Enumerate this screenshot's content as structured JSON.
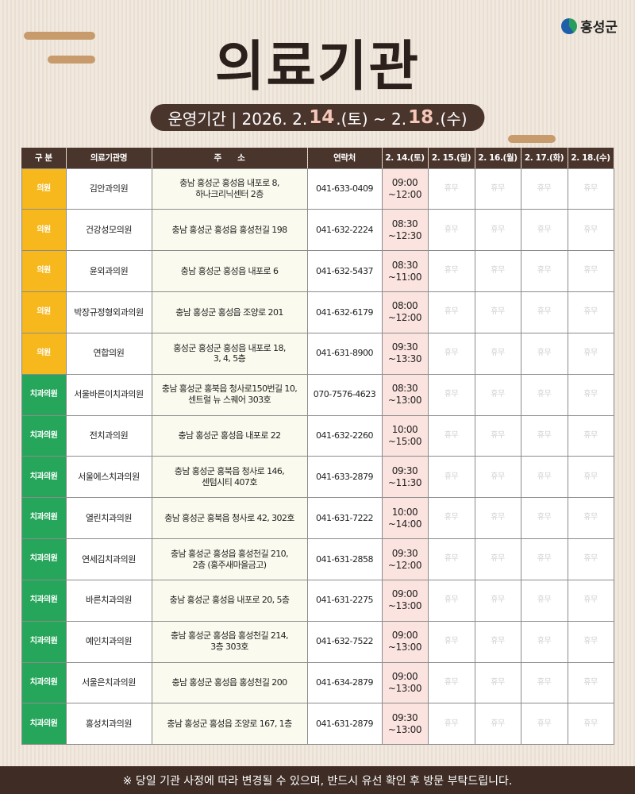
{
  "logo": {
    "text": "홍성군"
  },
  "title": "의료기관",
  "period": {
    "prefix": "운영기간 | 2026. 2.",
    "start_day": "14",
    "start_suffix": ".(토) ~ 2.",
    "end_day": "18",
    "end_suffix": ".(수)"
  },
  "colors": {
    "clinic": "#f6b81c",
    "dental": "#26a65b",
    "header": "#4a352d"
  },
  "table": {
    "headers": [
      "구 분",
      "의료기관명",
      "주　　소",
      "연락처",
      "2. 14.(토)",
      "2. 15.(일)",
      "2. 16.(월)",
      "2. 17.(화)",
      "2. 18.(수)"
    ],
    "closed_label": "휴무",
    "rows": [
      {
        "type": "의원",
        "kind": "clinic",
        "name": "김안과의원",
        "address": "충남 홍성군 홍성읍 내포로 8,\n하나크리닉센터 2층",
        "phone": "041-633-0409",
        "hours": "09:00\n~12:00"
      },
      {
        "type": "의원",
        "kind": "clinic",
        "name": "건강성모의원",
        "address": "충남 홍성군 홍성읍 홍성천길 198",
        "phone": "041-632-2224",
        "hours": "08:30\n~12:30"
      },
      {
        "type": "의원",
        "kind": "clinic",
        "name": "윤외과의원",
        "address": "충남 홍성군 홍성읍 내포로 6",
        "phone": "041-632-5437",
        "hours": "08:30\n~11:00"
      },
      {
        "type": "의원",
        "kind": "clinic",
        "name": "박장규정형외과의원",
        "address": "충남 홍성군 홍성읍 조양로 201",
        "phone": "041-632-6179",
        "hours": "08:00\n~12:00"
      },
      {
        "type": "의원",
        "kind": "clinic",
        "name": "연합의원",
        "address": "홍성군 홍성군 홍성읍 내포로 18,\n3, 4, 5층",
        "phone": "041-631-8900",
        "hours": "09:30\n~13:30"
      },
      {
        "type": "치과의원",
        "kind": "dental",
        "name": "서울바른이치과의원",
        "address": "충남 홍성군 홍북읍 청사로150번길 10,\n센트럴 뉴 스퀘어 303호",
        "phone": "070-7576-4623",
        "hours": "08:30\n~13:00"
      },
      {
        "type": "치과의원",
        "kind": "dental",
        "name": "전치과의원",
        "address": "충남 홍성군 홍성읍 내포로 22",
        "phone": "041-632-2260",
        "hours": "10:00\n~15:00"
      },
      {
        "type": "치과의원",
        "kind": "dental",
        "name": "서울에스치과의원",
        "address": "충남 홍성군 홍북읍 청사로 146,\n센텀시티 407호",
        "phone": "041-633-2879",
        "hours": "09:30\n~11:30"
      },
      {
        "type": "치과의원",
        "kind": "dental",
        "name": "열린치과의원",
        "address": "충남 홍성군 홍북읍 청사로 42, 302호",
        "phone": "041-631-7222",
        "hours": "10:00\n~14:00"
      },
      {
        "type": "치과의원",
        "kind": "dental",
        "name": "연세김치과의원",
        "address": "충남 홍성군 홍성읍 홍성천길 210,\n2층 (홍주새마을금고)",
        "phone": "041-631-2858",
        "hours": "09:30\n~12:00"
      },
      {
        "type": "치과의원",
        "kind": "dental",
        "name": "바른치과의원",
        "address": "충남 홍성군 홍성읍 내포로 20, 5층",
        "phone": "041-631-2275",
        "hours": "09:00\n~13:00"
      },
      {
        "type": "치과의원",
        "kind": "dental",
        "name": "예인치과의원",
        "address": "충남 홍성군 홍성읍 홍성천길 214,\n3층 303호",
        "phone": "041-632-7522",
        "hours": "09:00\n~13:00"
      },
      {
        "type": "치과의원",
        "kind": "dental",
        "name": "서울은치과의원",
        "address": "충남 홍성군 홍성읍 홍성천길 200",
        "phone": "041-634-2879",
        "hours": "09:00\n~13:00"
      },
      {
        "type": "치과의원",
        "kind": "dental",
        "name": "홍성치과의원",
        "address": "충남 홍성군 홍성읍 조양로 167, 1층",
        "phone": "041-631-2879",
        "hours": "09:30\n~13:00"
      }
    ]
  },
  "footer": "※ 당일 기관 사정에 따라 변경될 수 있으며, 반드시 유선 확인 후 방문 부탁드립니다."
}
